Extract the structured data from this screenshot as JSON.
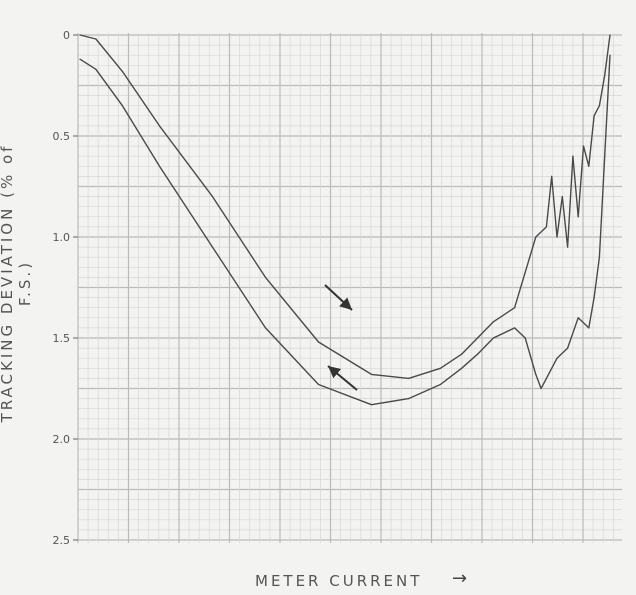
{
  "chart_data": {
    "type": "line",
    "title": "",
    "xlabel": "METER CURRENT",
    "ylabel": "TRACKING DEVIATION (% of F.S.)",
    "x_direction_arrow": "→",
    "y_axis": {
      "inverted": true,
      "ylim": [
        0,
        2.5
      ],
      "ticks": [
        "0",
        "0.5",
        "1.0",
        "1.5",
        "2.0",
        "2.5"
      ],
      "tick_values": [
        0,
        0.5,
        1.0,
        1.5,
        2.0,
        2.5
      ]
    },
    "x_axis": {
      "xlim": [
        0,
        100
      ],
      "ticks": []
    },
    "grid": true,
    "series": [
      {
        "direction": "increasing",
        "x": [
          0,
          3,
          8,
          15,
          25,
          35,
          45,
          55,
          62,
          68,
          72,
          75,
          78,
          82,
          86,
          88,
          89,
          90,
          91,
          92,
          93,
          94,
          95,
          96,
          97,
          98,
          99,
          100
        ],
        "y": [
          0,
          0.02,
          0.18,
          0.45,
          0.8,
          1.2,
          1.52,
          1.68,
          1.7,
          1.65,
          1.58,
          1.5,
          1.42,
          1.35,
          1.0,
          0.95,
          0.7,
          1.0,
          0.8,
          1.05,
          0.6,
          0.9,
          0.55,
          0.65,
          0.4,
          0.35,
          0.2,
          0
        ]
      },
      {
        "direction": "decreasing",
        "x": [
          0,
          3,
          8,
          15,
          25,
          35,
          45,
          55,
          62,
          68,
          72,
          75,
          78,
          82,
          84,
          86,
          87,
          88,
          90,
          92,
          94,
          96,
          97,
          98,
          99,
          100
        ],
        "y": [
          0.12,
          0.17,
          0.35,
          0.65,
          1.05,
          1.45,
          1.73,
          1.83,
          1.8,
          1.73,
          1.65,
          1.58,
          1.5,
          1.45,
          1.5,
          1.68,
          1.75,
          1.7,
          1.6,
          1.55,
          1.4,
          1.45,
          1.3,
          1.1,
          0.6,
          0.1
        ]
      }
    ],
    "annotations": [
      {
        "type": "arrow",
        "direction": "down-right",
        "series": "increasing"
      },
      {
        "type": "arrow",
        "direction": "up-left",
        "series": "decreasing"
      }
    ],
    "colors": {
      "paper": "#f3f3f1",
      "grid_major": "#b9bcbc",
      "grid_minor": "#d6d8d8",
      "trace": "#4a4a4a"
    }
  }
}
